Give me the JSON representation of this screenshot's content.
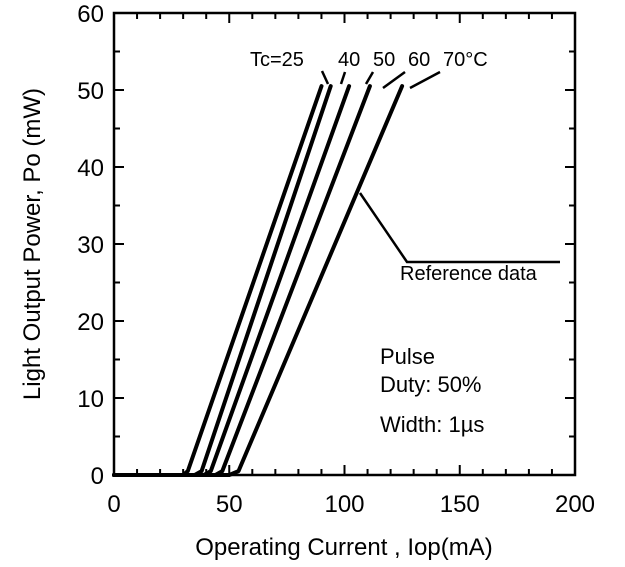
{
  "chart_data": {
    "type": "line",
    "xlabel": "Operating Current , Iop(mA)",
    "ylabel": "Light Output Power, Po (mW)",
    "xlim": [
      0,
      200
    ],
    "ylim": [
      0,
      60
    ],
    "x_ticks": [
      "0",
      "50",
      "100",
      "150",
      "200"
    ],
    "y_ticks": [
      "0",
      "10",
      "20",
      "30",
      "40",
      "50",
      "60"
    ],
    "grid": false,
    "legend": "none",
    "series": [
      {
        "name": "Tc=25",
        "x": [
          0,
          30,
          32,
          90
        ],
        "y": [
          0,
          0,
          0.5,
          50.5
        ]
      },
      {
        "name": "40",
        "x": [
          0,
          35,
          38,
          94
        ],
        "y": [
          0,
          0,
          0.5,
          50.5
        ]
      },
      {
        "name": "50",
        "x": [
          0,
          39,
          42,
          102
        ],
        "y": [
          0,
          0,
          0.5,
          50.5
        ]
      },
      {
        "name": "60",
        "x": [
          0,
          44,
          47,
          111
        ],
        "y": [
          0,
          0,
          0.5,
          50.5
        ]
      },
      {
        "name": "70°C",
        "x": [
          0,
          50,
          54,
          125
        ],
        "y": [
          0,
          0,
          0.5,
          50.5
        ]
      }
    ],
    "annotations": {
      "reference": "Reference data",
      "pulse": "Pulse",
      "duty": "Duty: 50%",
      "width": "Width: 1µs"
    }
  }
}
